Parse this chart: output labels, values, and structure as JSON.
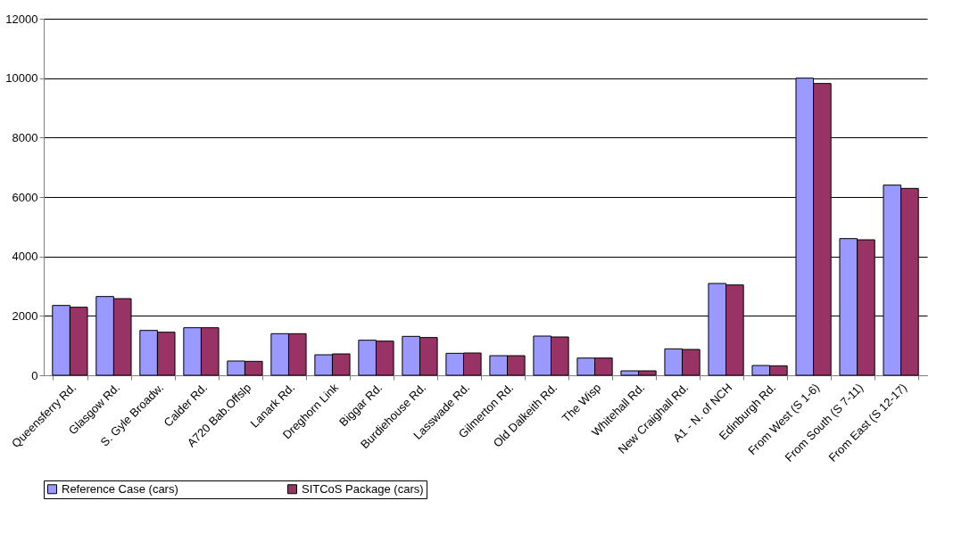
{
  "chart_data": {
    "type": "bar",
    "categories": [
      "Queensferry Rd.",
      "Glasgow Rd.",
      "S. Gyle Broadw.",
      "Calder Rd.",
      "A720 Bab.Offslp",
      "Lanark Rd.",
      "Dreghorn Link",
      "Biggar Rd.",
      "Burdiehouse Rd.",
      "Lasswade Rd.",
      "Gilmerton Rd.",
      "Old Dalkeith Rd.",
      "The Wisp",
      "Whitehall Rd.",
      "New Craighall Rd.",
      "A1 - N. of NCH",
      "Edinburgh Rd.",
      "From West (S 1-6)",
      "From South (S 7-11)",
      "From East (S 12-17)"
    ],
    "series": [
      {
        "name": "Reference Case (cars)",
        "color": "#9999ff",
        "values": [
          2350,
          2650,
          1510,
          1600,
          480,
          1400,
          690,
          1180,
          1310,
          740,
          660,
          1320,
          580,
          150,
          890,
          3090,
          330,
          10000,
          4600,
          6400
        ]
      },
      {
        "name": "SITCoS Package (cars)",
        "color": "#993366",
        "values": [
          2290,
          2580,
          1450,
          1600,
          470,
          1400,
          720,
          1150,
          1270,
          750,
          660,
          1290,
          580,
          150,
          870,
          3040,
          320,
          9820,
          4560,
          6290
        ]
      }
    ],
    "ylim": [
      0,
      12000
    ],
    "yticks": [
      0,
      2000,
      4000,
      6000,
      8000,
      10000,
      12000
    ],
    "grid": "y",
    "legend": "bottom"
  }
}
